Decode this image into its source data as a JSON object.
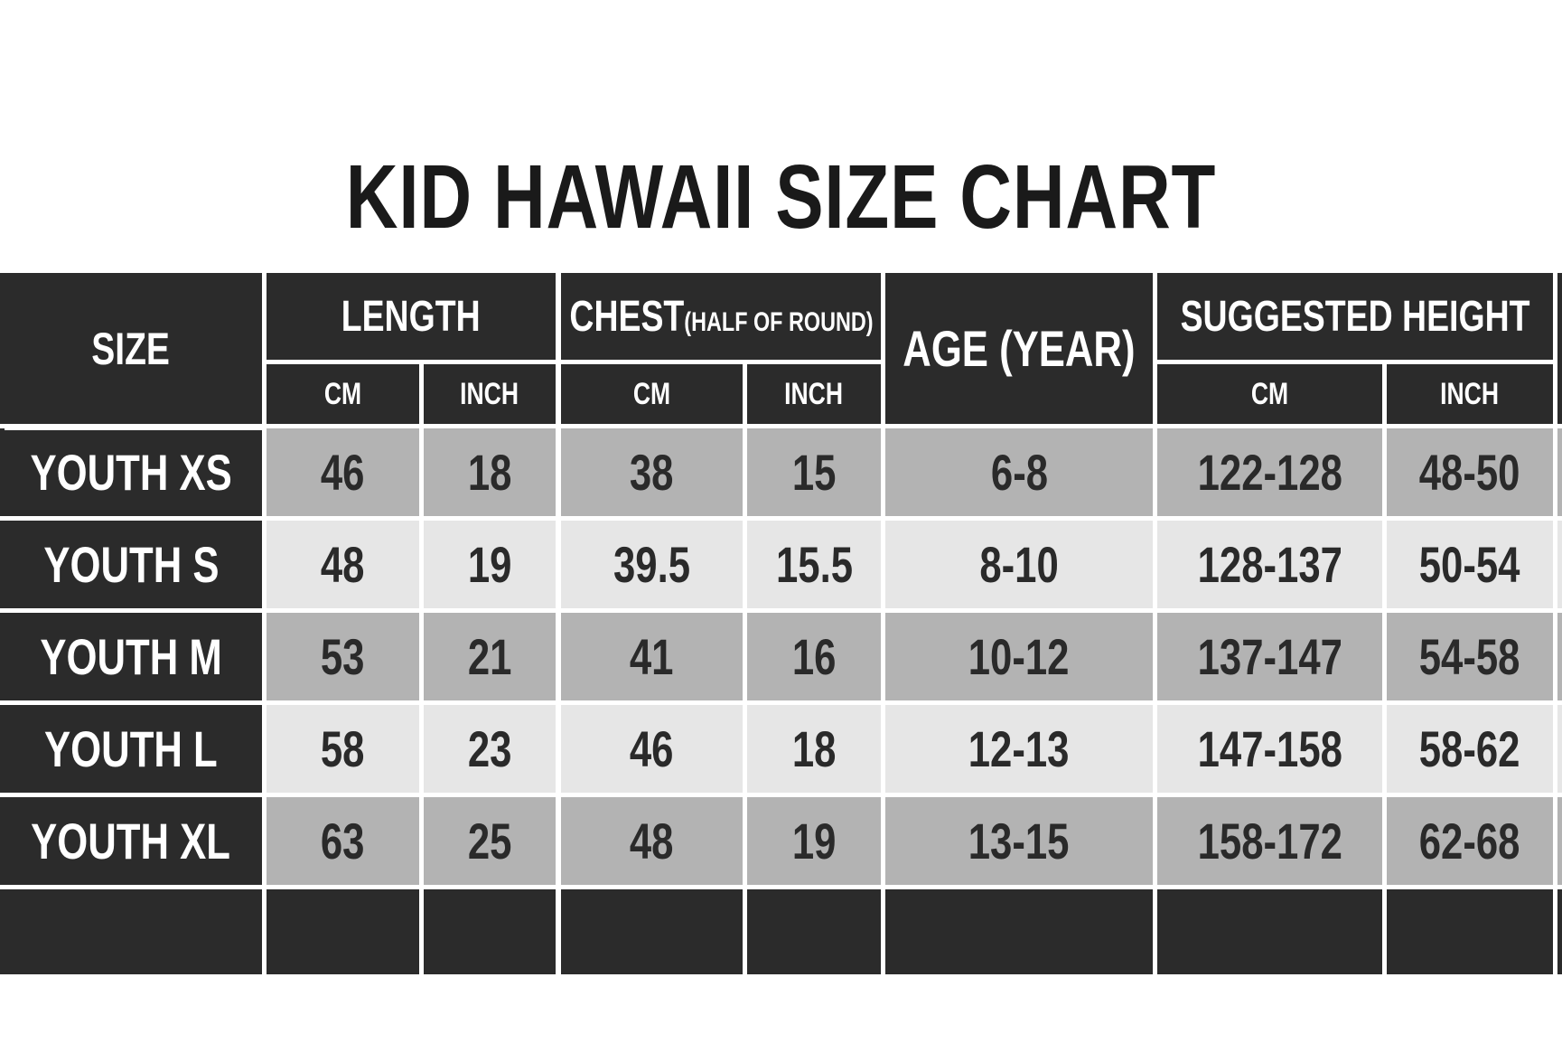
{
  "title": "KID HAWAII SIZE CHART",
  "headers": {
    "size": "SIZE",
    "length": "LENGTH",
    "chest_main": "CHEST",
    "chest_note": "(HALF OF ROUND)",
    "age": "AGE (YEAR)",
    "height": "SUGGESTED HEIGHT",
    "cm": "CM",
    "inch": "INCH"
  },
  "rows": [
    {
      "size": "YOUTH XS",
      "length_cm": "46",
      "length_inch": "18",
      "chest_cm": "38",
      "chest_inch": "15",
      "age": "6-8",
      "height_cm": "122-128",
      "height_inch": "48-50"
    },
    {
      "size": "YOUTH S",
      "length_cm": "48",
      "length_inch": "19",
      "chest_cm": "39.5",
      "chest_inch": "15.5",
      "age": "8-10",
      "height_cm": "128-137",
      "height_inch": "50-54"
    },
    {
      "size": "YOUTH M",
      "length_cm": "53",
      "length_inch": "21",
      "chest_cm": "41",
      "chest_inch": "16",
      "age": "10-12",
      "height_cm": "137-147",
      "height_inch": "54-58"
    },
    {
      "size": "YOUTH L",
      "length_cm": "58",
      "length_inch": "23",
      "chest_cm": "46",
      "chest_inch": "18",
      "age": "12-13",
      "height_cm": "147-158",
      "height_inch": "58-62"
    },
    {
      "size": "YOUTH XL",
      "length_cm": "63",
      "length_inch": "25",
      "chest_cm": "48",
      "chest_inch": "19",
      "age": "13-15",
      "height_cm": "158-172",
      "height_inch": "62-68"
    }
  ],
  "colors": {
    "header_bg": "#2b2b2b",
    "row_gray_dark": "#b3b3b3",
    "row_gray_light": "#e6e6e6",
    "grid_line": "#ffffff"
  }
}
